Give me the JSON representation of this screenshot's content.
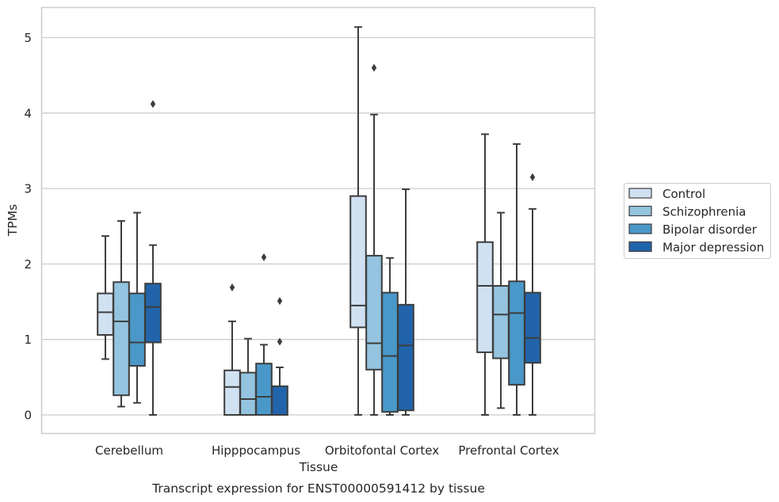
{
  "chart_data": {
    "type": "box",
    "title": "",
    "xlabel": "Tissue",
    "ylabel": "TPMs",
    "caption": "Transcript expression for ENST00000591412 by tissue",
    "ylim": [
      -0.25,
      5.4
    ],
    "yticks": [
      0,
      1,
      2,
      3,
      4,
      5
    ],
    "grid": "horizontal",
    "legend_position": "right",
    "categories": [
      "Cerebellum",
      "Hipppocampus",
      "Orbitofontal Cortex",
      "Prefrontal Cortex"
    ],
    "series": [
      {
        "name": "Control",
        "color": "#d0e1f2",
        "boxes": [
          {
            "whislo": 0.74,
            "q1": 1.06,
            "med": 1.36,
            "q3": 1.61,
            "whishi": 2.37,
            "fliers": []
          },
          {
            "whislo": 0.0,
            "q1": 0.0,
            "med": 0.37,
            "q3": 0.59,
            "whishi": 1.24,
            "fliers": [
              1.69
            ]
          },
          {
            "whislo": 0.0,
            "q1": 1.16,
            "med": 1.45,
            "q3": 2.9,
            "whishi": 5.14,
            "fliers": []
          },
          {
            "whislo": 0.0,
            "q1": 0.83,
            "med": 1.71,
            "q3": 2.29,
            "whishi": 3.72,
            "fliers": []
          }
        ]
      },
      {
        "name": "Schizophrenia",
        "color": "#94c4df",
        "boxes": [
          {
            "whislo": 0.11,
            "q1": 0.26,
            "med": 1.24,
            "q3": 1.76,
            "whishi": 2.57,
            "fliers": []
          },
          {
            "whislo": 0.0,
            "q1": 0.0,
            "med": 0.21,
            "q3": 0.56,
            "whishi": 1.01,
            "fliers": []
          },
          {
            "whislo": 0.0,
            "q1": 0.6,
            "med": 0.95,
            "q3": 2.11,
            "whishi": 3.98,
            "fliers": [
              4.6
            ]
          },
          {
            "whislo": 0.09,
            "q1": 0.75,
            "med": 1.33,
            "q3": 1.71,
            "whishi": 2.68,
            "fliers": []
          }
        ]
      },
      {
        "name": "Bipolar disorder",
        "color": "#4a98c9",
        "boxes": [
          {
            "whislo": 0.16,
            "q1": 0.65,
            "med": 0.96,
            "q3": 1.61,
            "whishi": 2.68,
            "fliers": []
          },
          {
            "whislo": 0.0,
            "q1": 0.0,
            "med": 0.24,
            "q3": 0.68,
            "whishi": 0.93,
            "fliers": [
              2.09
            ]
          },
          {
            "whislo": 0.0,
            "q1": 0.04,
            "med": 0.78,
            "q3": 1.62,
            "whishi": 2.08,
            "fliers": []
          },
          {
            "whislo": 0.0,
            "q1": 0.4,
            "med": 1.35,
            "q3": 1.77,
            "whishi": 3.59,
            "fliers": []
          }
        ]
      },
      {
        "name": "Major depression",
        "color": "#2164ab",
        "boxes": [
          {
            "whislo": 0.0,
            "q1": 0.96,
            "med": 1.43,
            "q3": 1.74,
            "whishi": 2.25,
            "fliers": [
              4.12
            ]
          },
          {
            "whislo": 0.0,
            "q1": 0.0,
            "med": 0.0,
            "q3": 0.38,
            "whishi": 0.63,
            "fliers": [
              0.97,
              1.51
            ]
          },
          {
            "whislo": 0.0,
            "q1": 0.06,
            "med": 0.92,
            "q3": 1.46,
            "whishi": 2.99,
            "fliers": []
          },
          {
            "whislo": 0.0,
            "q1": 0.69,
            "med": 1.02,
            "q3": 1.62,
            "whishi": 2.73,
            "fliers": [
              3.15
            ]
          }
        ]
      }
    ]
  }
}
